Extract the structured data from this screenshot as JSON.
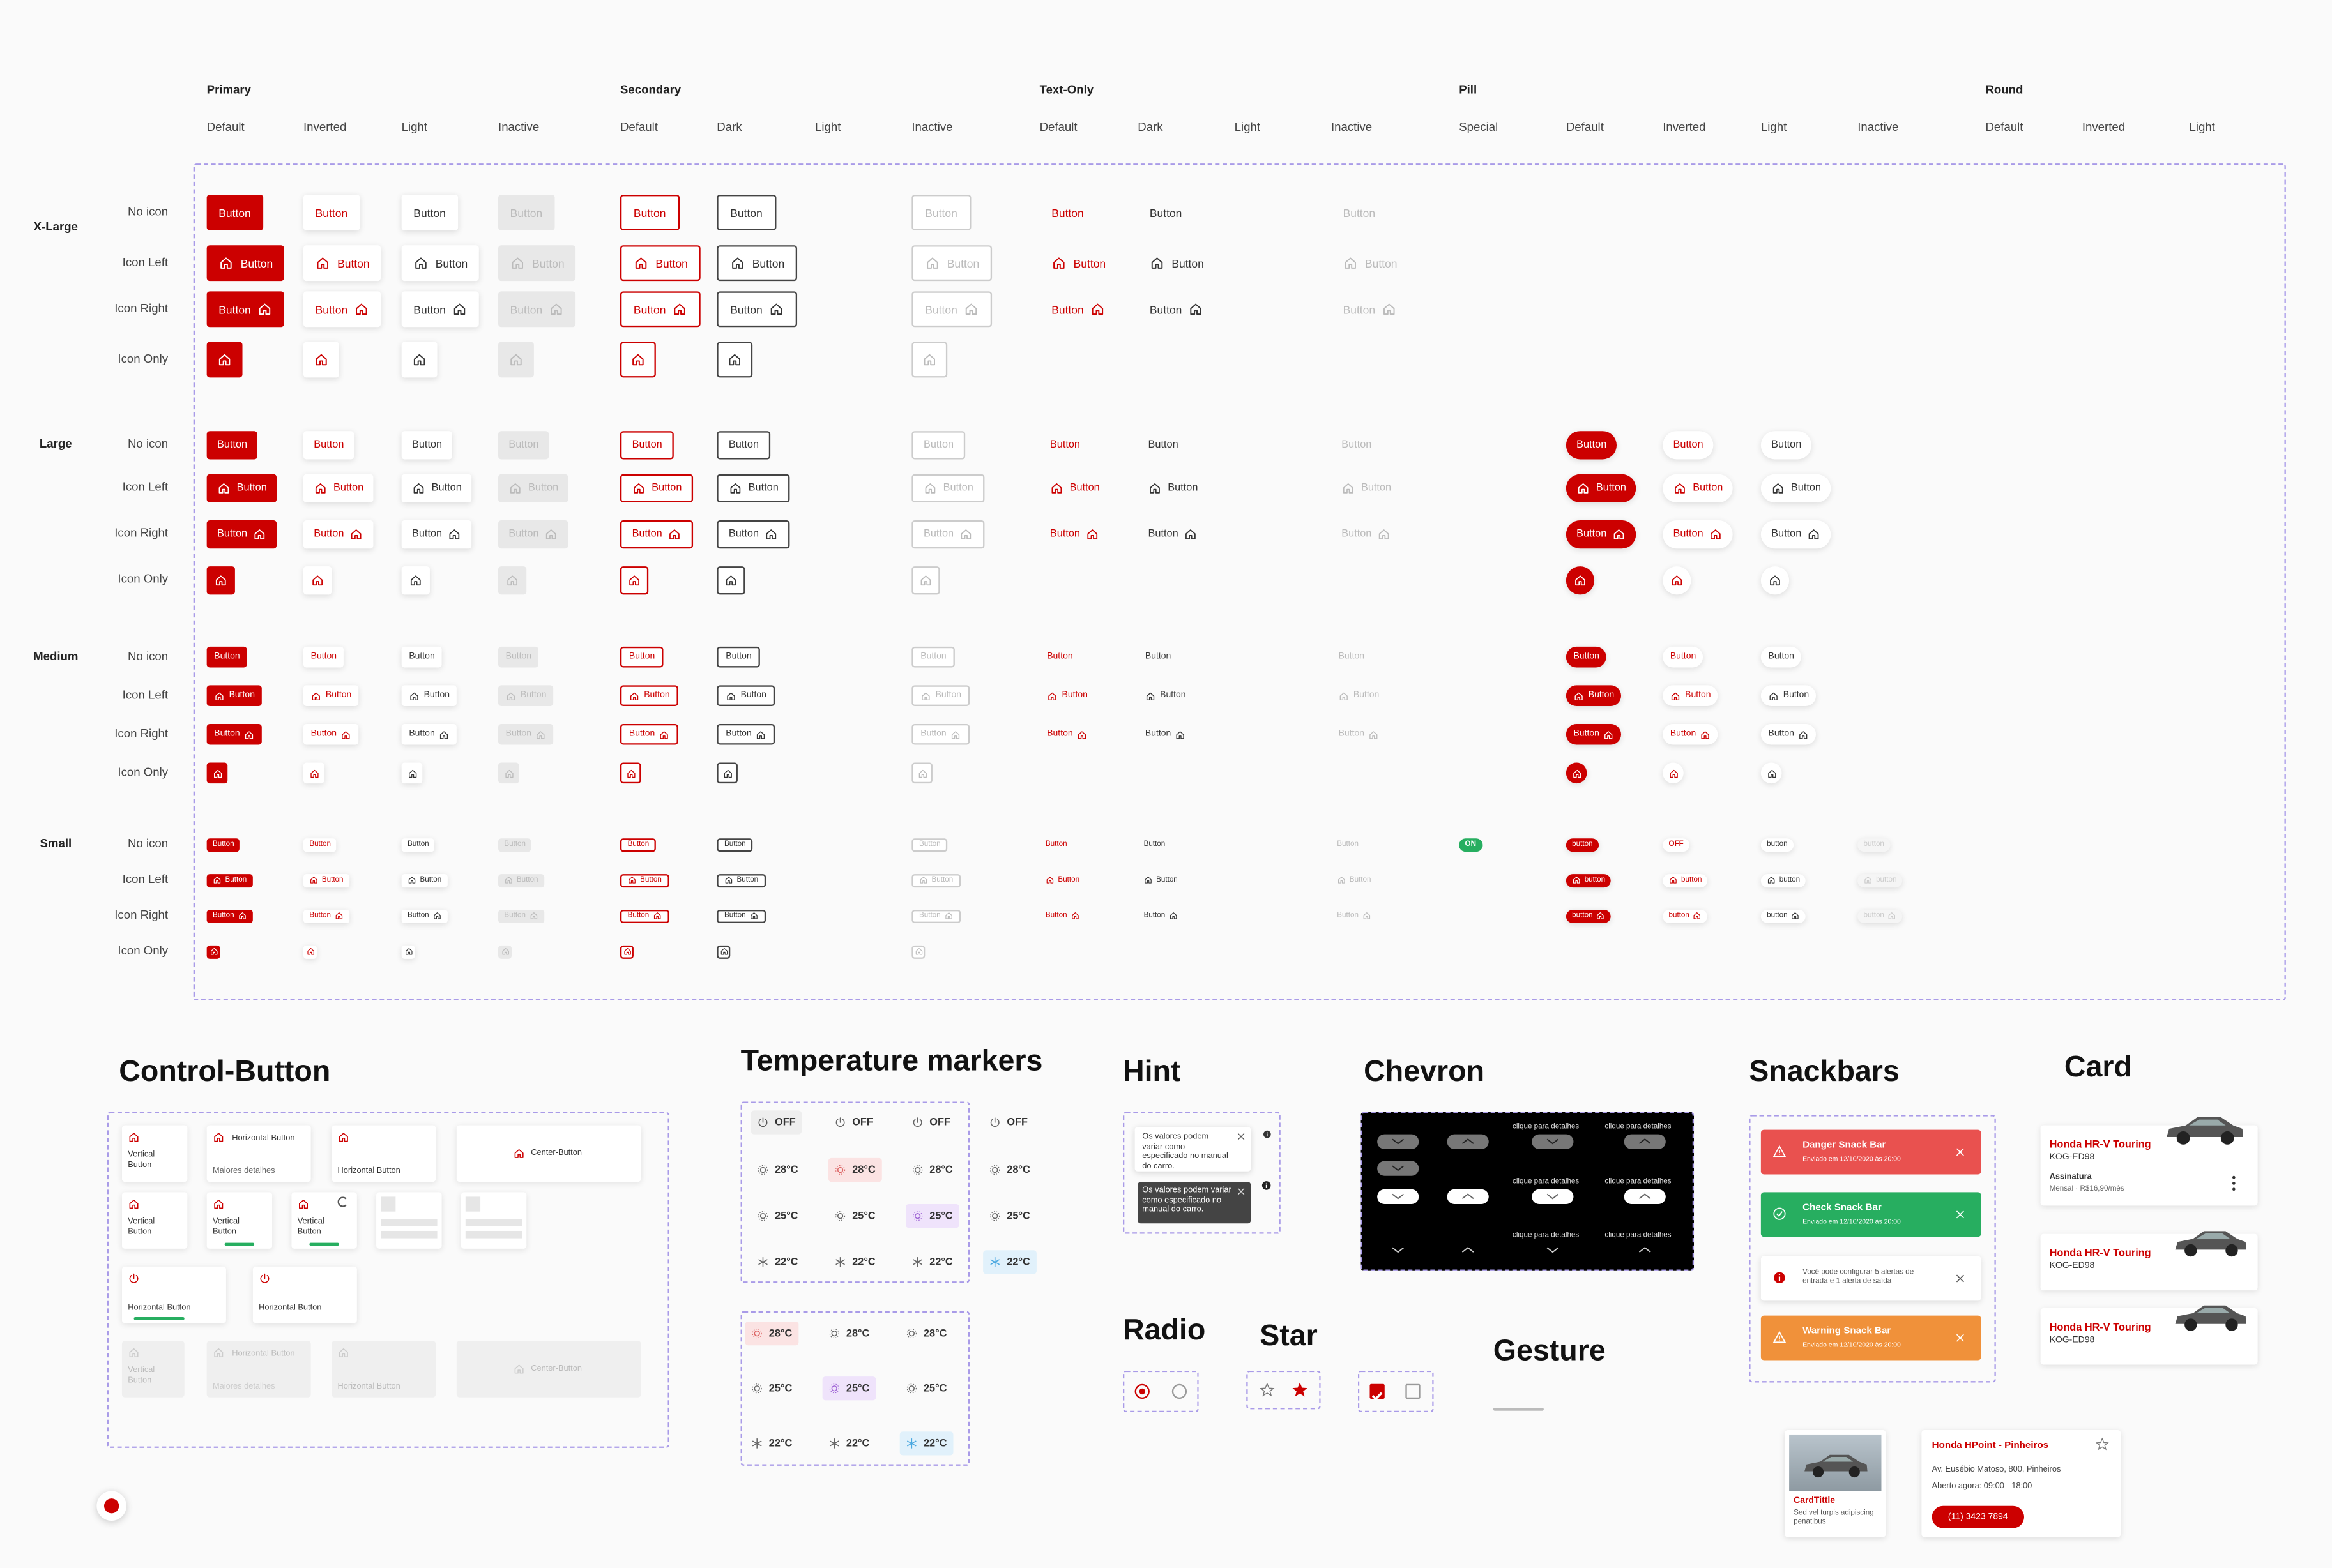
{
  "buttons": {
    "groups": [
      {
        "title": "Primary",
        "columns": [
          "Default",
          "Inverted",
          "Light",
          "Inactive"
        ]
      },
      {
        "title": "Secondary",
        "columns": [
          "Default",
          "Dark",
          "Light",
          "Inactive"
        ]
      },
      {
        "title": "Text-Only",
        "columns": [
          "Default",
          "Dark",
          "Light",
          "Inactive"
        ]
      },
      {
        "title": "Pill",
        "columns": [
          "Special",
          "Default",
          "Inverted",
          "Light",
          "Inactive"
        ]
      },
      {
        "title": "Round",
        "columns": [
          "Default",
          "Inverted",
          "Light"
        ]
      }
    ],
    "sizes": [
      {
        "title": "X-Large",
        "rows": [
          "No icon",
          "Icon Left",
          "Icon Right",
          "Icon Only"
        ]
      },
      {
        "title": "Large",
        "rows": [
          "No icon",
          "Icon Left",
          "Icon Right",
          "Icon Only"
        ]
      },
      {
        "title": "Medium",
        "rows": [
          "No icon",
          "Icon Left",
          "Icon Right",
          "Icon Only"
        ]
      },
      {
        "title": "Small",
        "rows": [
          "No icon",
          "Icon Left",
          "Icon Right",
          "Icon Only"
        ]
      }
    ],
    "label": "Button",
    "pill_small_label": "button",
    "on_label": "ON",
    "off_label": "OFF"
  },
  "control_button": {
    "title": "Control-Button",
    "vertical": "Vertical Button",
    "horizontal": "Horizontal Button",
    "details": "Maiores detalhes",
    "center": "Center-Button"
  },
  "temperature": {
    "title": "Temperature markers",
    "values": [
      "OFF",
      "28°C",
      "25°C",
      "22°C"
    ]
  },
  "hint": {
    "title": "Hint",
    "text": "Os valores podem variar como especificado no manual do carro."
  },
  "chevron": {
    "title": "Chevron",
    "label": "clique para detalhes"
  },
  "snackbars": {
    "title": "Snackbars",
    "items": [
      {
        "title": "Danger Snack Bar",
        "time": "Enviado em 12/10/2020 às 20:00"
      },
      {
        "title": "Check Snack Bar",
        "time": "Enviado em 12/10/2020 às 20:00"
      },
      {
        "text": "Você pode configurar 5 alertas de entrada e 1 alerta de saída"
      },
      {
        "title": "Warning Snack Bar",
        "time": "Enviado em 12/10/2020 às 20:00"
      }
    ]
  },
  "card": {
    "title": "Card",
    "cars": [
      {
        "model": "Honda HR-V Touring",
        "plate": "KOG-ED98",
        "plan": "Assinatura",
        "price": "Mensal · R$16,90/mês"
      },
      {
        "model": "Honda HR-V Touring",
        "plate": "KOG-ED98"
      },
      {
        "model": "Honda HR-V Touring",
        "plate": "KOG-ED98"
      }
    ],
    "dealer": {
      "card_title": "CardTittle",
      "card_text": "Sed vel turpis adipiscing penatibus",
      "name": "Honda HPoint - Pinheiros",
      "address": "Av. Eusébio Matoso, 800, Pinheiros",
      "hours": "Aberto agora: 09:00 - 18:00",
      "phone": "(11) 3423 7894"
    }
  },
  "radio": {
    "title": "Radio"
  },
  "star": {
    "title": "Star"
  },
  "gesture": {
    "title": "Gesture"
  }
}
